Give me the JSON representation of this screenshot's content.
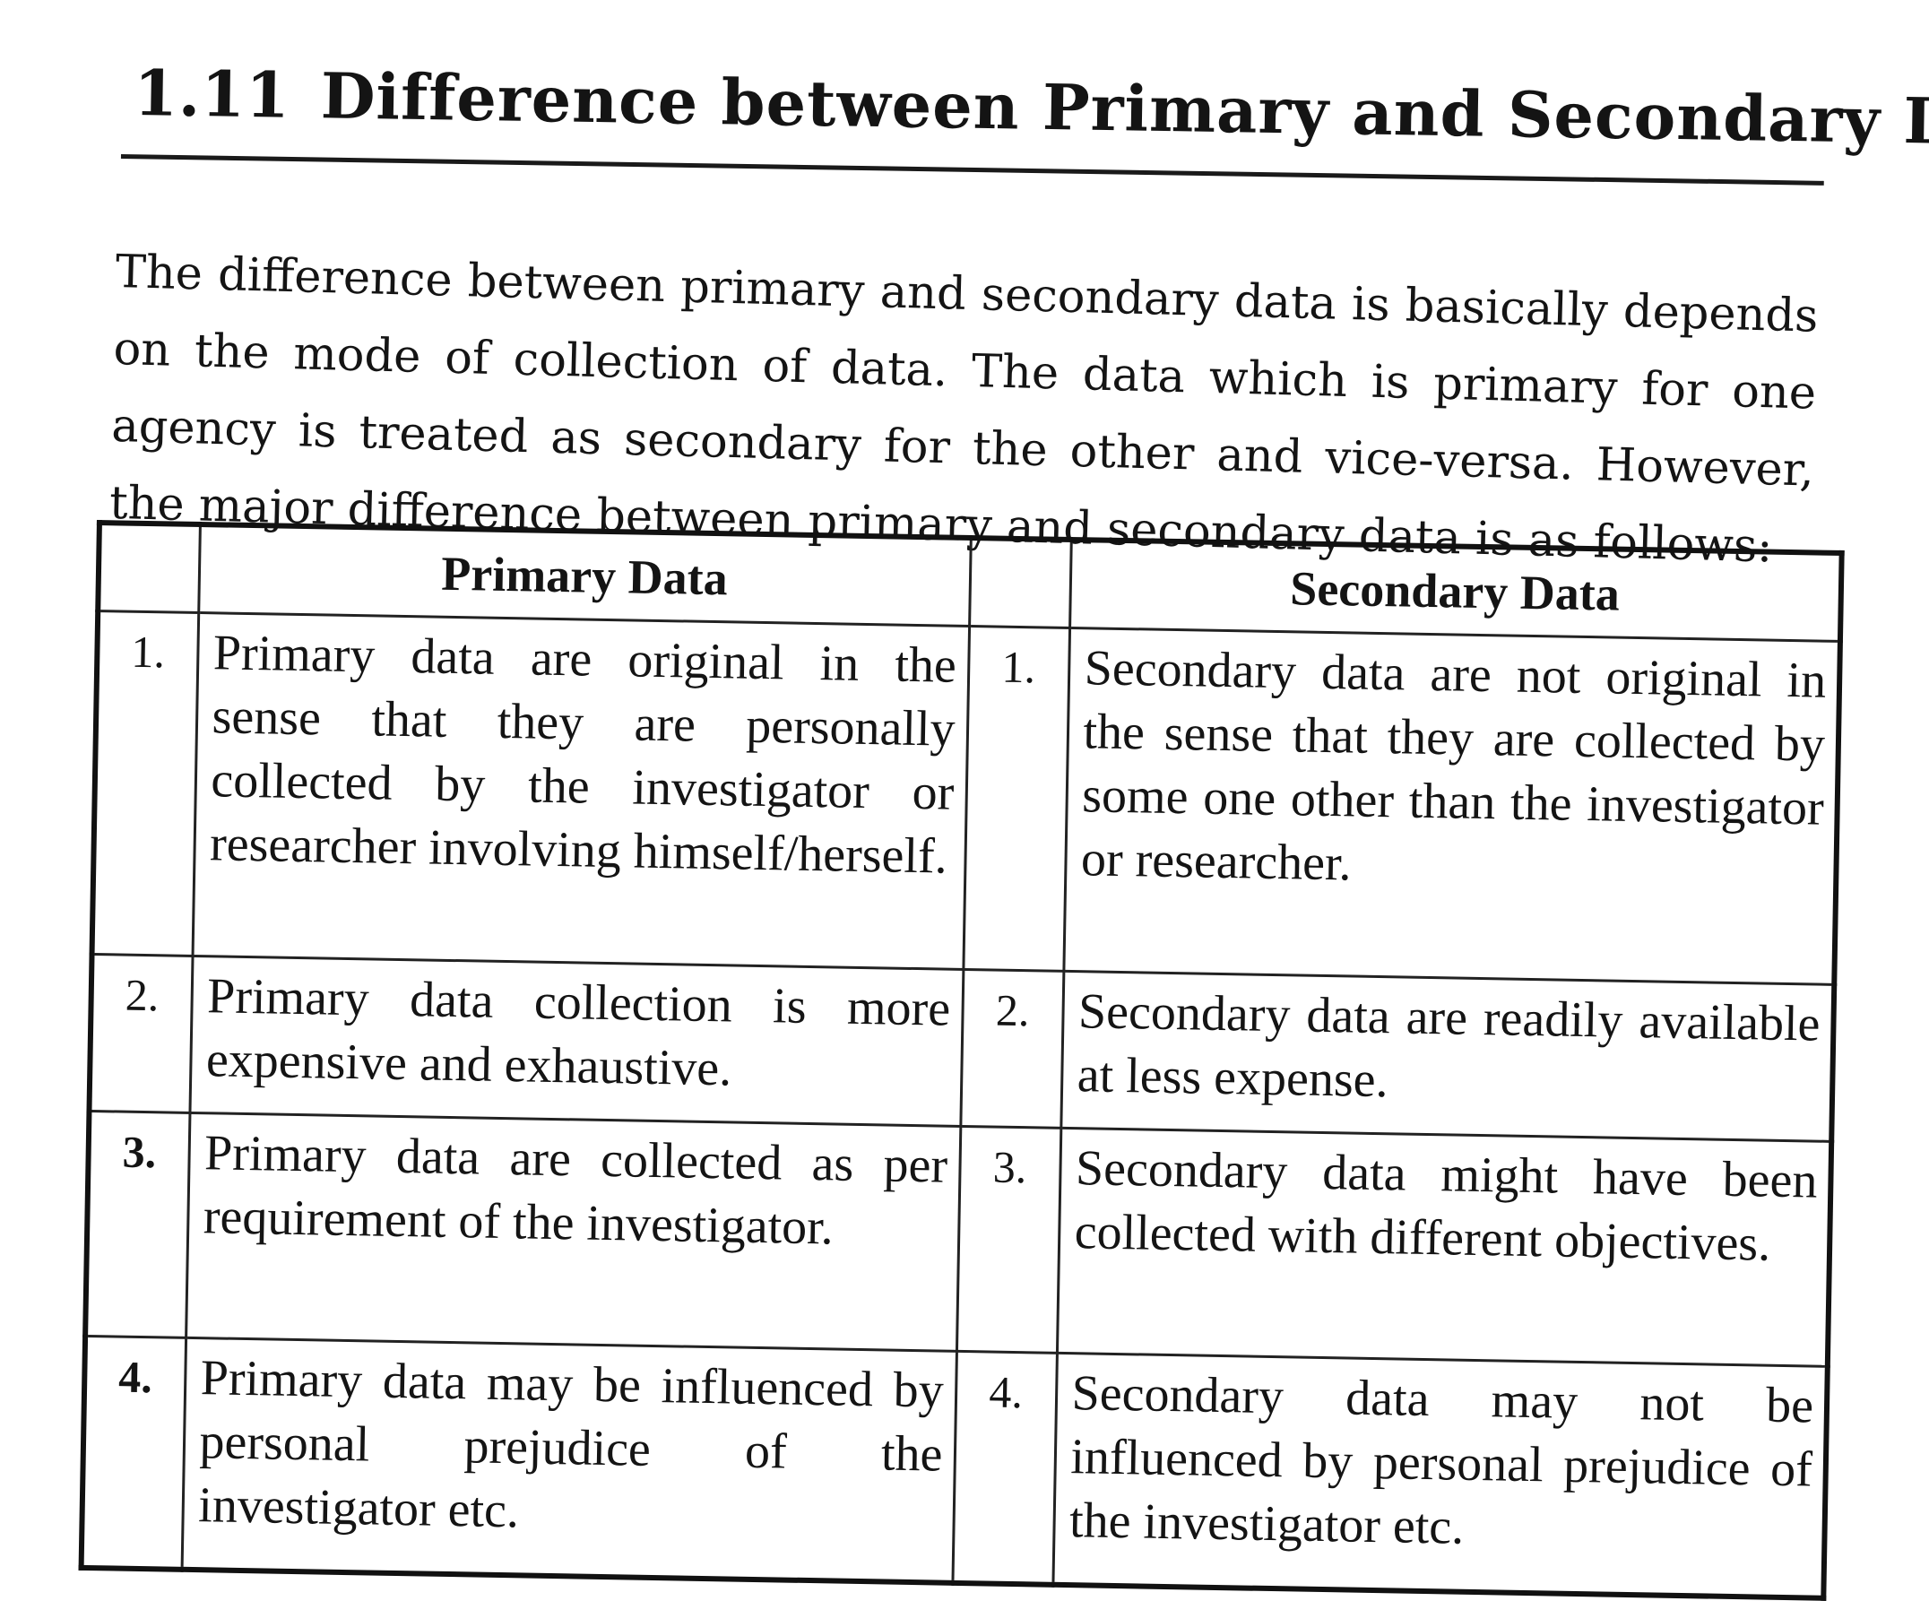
{
  "heading": {
    "section_number": "1.11",
    "title": "Difference between Primary and Secondary Data"
  },
  "intro": "The difference between primary and secondary data is basically depends on the mode of collection of data. The data which is primary for one agency is treated as secondary for the other and vice-versa. However, the major difference between primary and secondary data is as follows:",
  "table": {
    "headers": {
      "primary": "Primary Data",
      "secondary": "Secondary Data"
    },
    "rows": [
      {
        "p_num": "1.",
        "primary": "Primary data are original in the sense that they are personally collected by the investigator or researcher involving himself/herself.",
        "s_num": "1.",
        "secondary": "Secondary data are not original in the sense that they are collected by some one other than the investigator or researcher."
      },
      {
        "p_num": "2.",
        "primary": "Primary data collection is more expensive and exhaustive.",
        "s_num": "2.",
        "secondary": "Secondary data are readily available at less expense."
      },
      {
        "p_num": "3.",
        "primary": "Primary data are collected as per requirement of the investigator.",
        "s_num": "3.",
        "secondary": "Secondary data might have been collected with different objectives."
      },
      {
        "p_num": "4.",
        "primary": "Primary data may be influenced by personal prejudice of the investigator etc.",
        "s_num": "4.",
        "secondary": "Secondary data may not be influenced by personal prejudice of the investigator etc."
      }
    ]
  }
}
